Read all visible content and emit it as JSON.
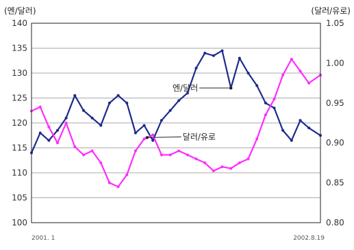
{
  "chart_data": {
    "type": "line",
    "y_left_unit": "(엔/달러)",
    "y_right_unit": "(달러/유로)",
    "y_left_ticks": [
      "140",
      "135",
      "130",
      "125",
      "120",
      "115",
      "110",
      "105",
      "100"
    ],
    "y_right_ticks": [
      "1.05",
      "1.00",
      "0.95",
      "0.90",
      "0.85",
      "0.80"
    ],
    "ylim_left": [
      100,
      140
    ],
    "ylim_right": [
      0.8,
      1.05
    ],
    "x_start_label": "2001. 1",
    "x_end_label": "2002.8.19",
    "grid": "horizontal",
    "colors": {
      "yen": "#1c2a8c",
      "euro": "#ff2bff"
    },
    "x": [
      0,
      0.03,
      0.06,
      0.09,
      0.12,
      0.15,
      0.18,
      0.21,
      0.24,
      0.27,
      0.3,
      0.33,
      0.36,
      0.39,
      0.42,
      0.45,
      0.48,
      0.51,
      0.54,
      0.57,
      0.6,
      0.63,
      0.66,
      0.69,
      0.72,
      0.75,
      0.78,
      0.81,
      0.84,
      0.87,
      0.9,
      0.93,
      0.96,
      1.0
    ],
    "series": [
      {
        "name": "엔/달러",
        "axis": "left",
        "values": [
          114.0,
          118.0,
          116.5,
          118.5,
          121.0,
          125.5,
          122.5,
          121.0,
          119.5,
          124.0,
          125.5,
          124.0,
          118.0,
          119.5,
          116.5,
          120.5,
          122.5,
          124.5,
          126.0,
          131.0,
          134.0,
          133.5,
          134.5,
          127.0,
          133.0,
          130.0,
          127.5,
          124.0,
          123.0,
          118.5,
          116.5,
          120.5,
          119.0,
          117.5
        ]
      },
      {
        "name": "달러/유로",
        "axis": "right",
        "values": [
          0.94,
          0.945,
          0.92,
          0.9,
          0.925,
          0.895,
          0.885,
          0.89,
          0.875,
          0.85,
          0.845,
          0.86,
          0.89,
          0.905,
          0.91,
          0.885,
          0.885,
          0.89,
          0.885,
          0.88,
          0.875,
          0.865,
          0.87,
          0.868,
          0.875,
          0.88,
          0.905,
          0.935,
          0.955,
          0.985,
          1.005,
          0.99,
          0.975,
          0.985
        ]
      }
    ],
    "annotations": [
      {
        "label": "엔/달러",
        "series": 0,
        "x": 0.69
      },
      {
        "label": "달러/유로",
        "series": 1,
        "x": 0.4
      }
    ]
  }
}
